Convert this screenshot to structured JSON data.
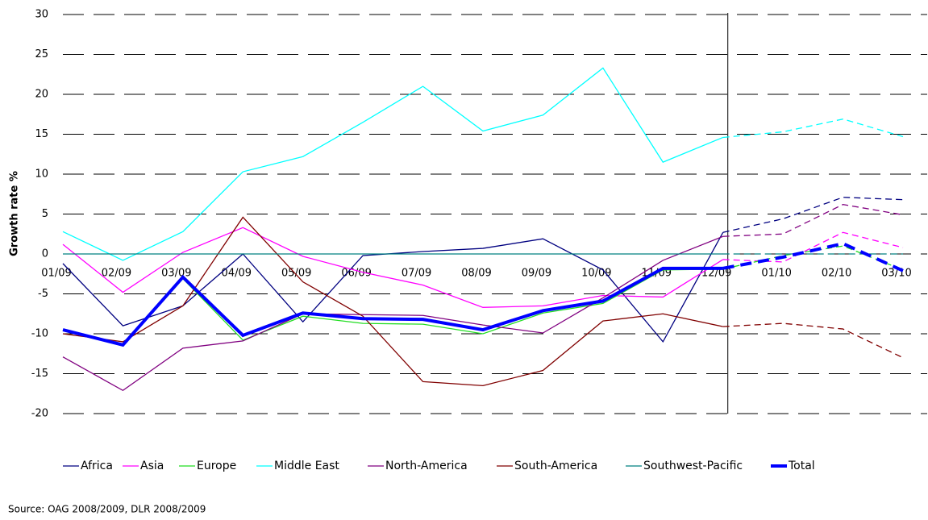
{
  "chart_data": {
    "type": "line",
    "y_label": "Growth rate %",
    "source": "Source: OAG 2008/2009, DLR 2008/2009",
    "categories": [
      "01/09",
      "02/09",
      "03/09",
      "04/09",
      "05/09",
      "06/09",
      "07/09",
      "08/09",
      "09/09",
      "10/09",
      "11/09",
      "12/09",
      "01/10",
      "02/10",
      "03/10"
    ],
    "forecast_from": "12/09",
    "ylim": [
      -20,
      30
    ],
    "yticks": [
      -20,
      -15,
      -10,
      -5,
      0,
      5,
      10,
      15,
      20,
      25,
      30
    ],
    "grid": true,
    "series": [
      {
        "name": "Africa",
        "color": "#000080",
        "values": [
          -1.2,
          -9,
          -6.5,
          0,
          -8.5,
          -0.2,
          0.3,
          0.7,
          1.9,
          -2,
          -11,
          2.7,
          4.4,
          7.1,
          6.8
        ]
      },
      {
        "name": "Asia",
        "color": "#ff00ff",
        "values": [
          1.2,
          -4.8,
          0.2,
          3.3,
          -0.3,
          -2.3,
          -3.9,
          -6.7,
          -6.5,
          -5.2,
          -5.4,
          -0.7,
          -1,
          2.7,
          0.8
        ]
      },
      {
        "name": "Europe",
        "color": "#22dd22",
        "values": [
          -9.5,
          -11.5,
          -3.1,
          -10.8,
          -7.8,
          -8.7,
          -8.8,
          -10,
          -7.4,
          -6.2,
          -2,
          -1.9,
          -0.2,
          1,
          -2
        ]
      },
      {
        "name": "Middle East",
        "color": "#00ffff",
        "values": [
          2.8,
          -0.8,
          2.8,
          10.3,
          12.2,
          16.5,
          21,
          15.4,
          17.4,
          23.3,
          11.5,
          14.6,
          15.3,
          16.9,
          14.7
        ]
      },
      {
        "name": "North-America",
        "color": "#800080",
        "values": [
          -12.9,
          -17.1,
          -11.8,
          -10.9,
          -7.5,
          -7.6,
          -7.7,
          -8.9,
          -9.9,
          -5.5,
          -0.8,
          2.2,
          2.5,
          6.2,
          4.9
        ]
      },
      {
        "name": "South-America",
        "color": "#800000",
        "values": [
          -10,
          -11,
          -6.5,
          4.6,
          -3.5,
          -7.8,
          -16,
          -16.5,
          -14.6,
          -8.4,
          -7.5,
          -9.1,
          -8.7,
          -9.4,
          -13
        ]
      },
      {
        "name": "Southwest-Pacific",
        "color": "#008080",
        "values": [
          0,
          0,
          0,
          0,
          0,
          0,
          0,
          0,
          0,
          0,
          0,
          0,
          0,
          0,
          0
        ]
      },
      {
        "name": "Total",
        "color": "#0000ff",
        "width": 4,
        "values": [
          -9.5,
          -11.4,
          -2.9,
          -10.2,
          -7.4,
          -8.1,
          -8.2,
          -9.5,
          -7.1,
          -5.9,
          -1.8,
          -1.8,
          -0.4,
          1.3,
          -2.1
        ]
      }
    ]
  }
}
